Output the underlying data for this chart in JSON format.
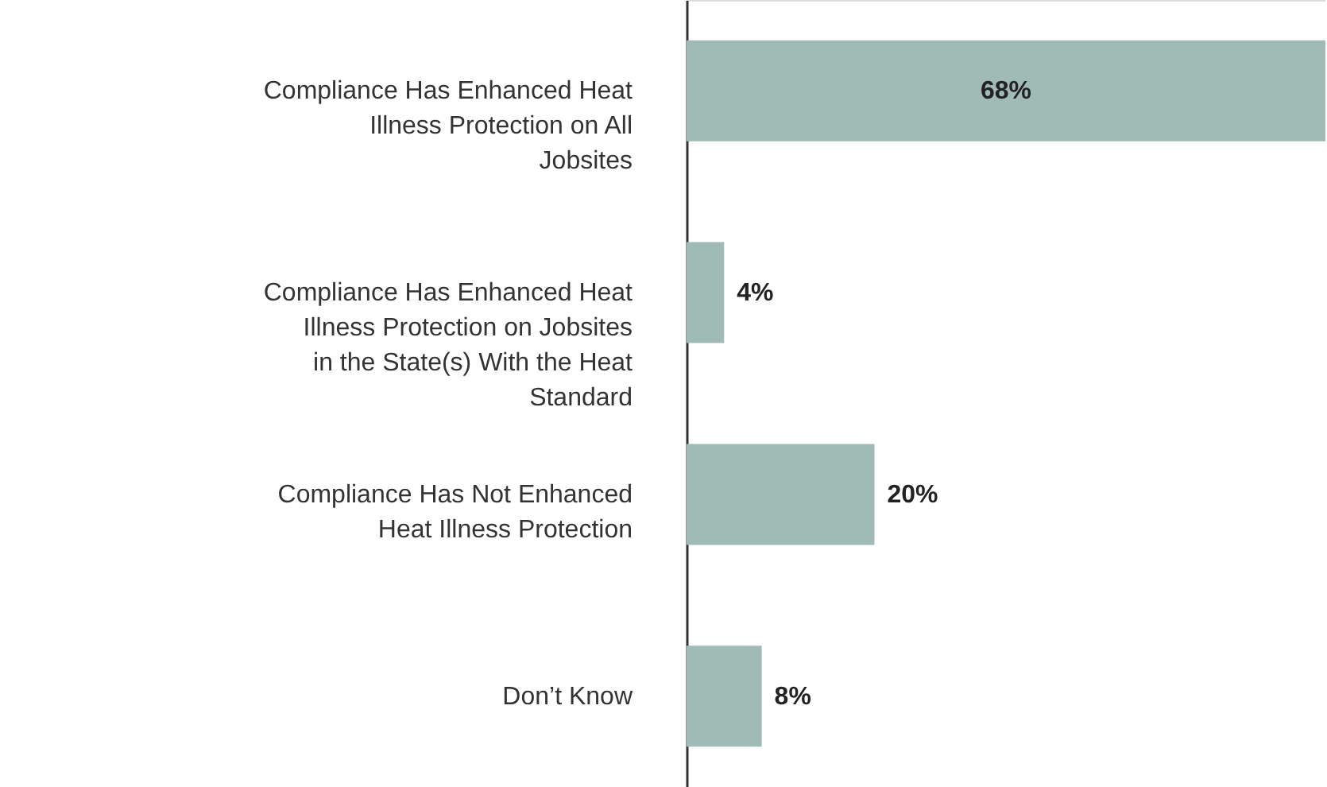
{
  "chart_data": {
    "type": "bar",
    "orientation": "horizontal",
    "value_labels": [
      "68%",
      "4%",
      "20%",
      "8%"
    ],
    "categories": [
      "Compliance Has Enhanced Heat Illness Protection on All Jobsites",
      "Compliance Has Enhanced Heat Illness Protection on Jobsites in the State(s) With the Heat Standard",
      "Compliance Has Not Enhanced Heat Illness Protection",
      "Don’t Know"
    ],
    "values": [
      68,
      4,
      20,
      8
    ],
    "color": "#a0bbb6"
  }
}
